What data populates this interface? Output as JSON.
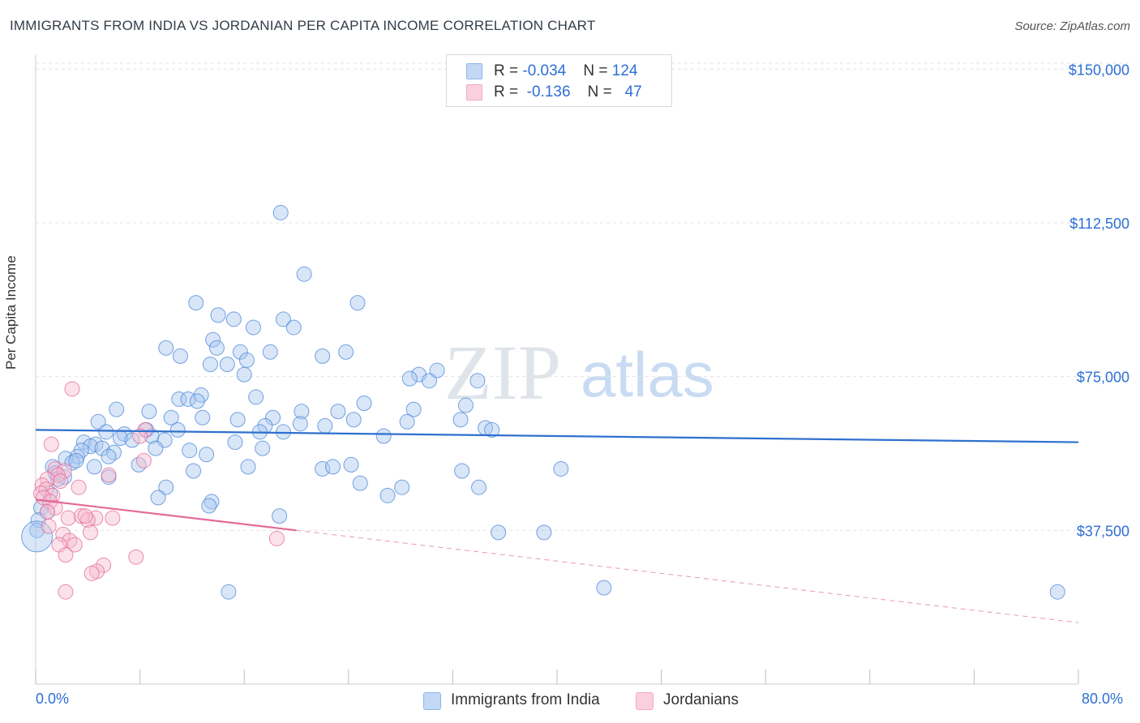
{
  "header": {
    "title": "IMMIGRANTS FROM INDIA VS JORDANIAN PER CAPITA INCOME CORRELATION CHART",
    "source": "Source: ZipAtlas.com"
  },
  "legend_top": {
    "rows": [
      {
        "r_label": "R = ",
        "r_value": "-0.034",
        "n_label": "N = ",
        "n_value": "124",
        "color": "#8db6ec"
      },
      {
        "r_label": "R = ",
        "r_value": "-0.136",
        "n_label": "N = ",
        "n_value": "47",
        "color": "#f4a9c2"
      }
    ]
  },
  "legend_bottom": {
    "items": [
      {
        "label": "Immigrants from India",
        "color": "#8db6ec"
      },
      {
        "label": "Jordanians",
        "color": "#f4a9c2"
      }
    ]
  },
  "watermark": {
    "zip": "ZIP",
    "atlas": "atlas"
  },
  "chart_data": {
    "type": "scatter",
    "title": "IMMIGRANTS FROM INDIA VS JORDANIAN PER CAPITA INCOME CORRELATION CHART",
    "ylabel": "Per Capita Income",
    "xlabel": "",
    "xlim": [
      0,
      80
    ],
    "ylim": [
      0,
      155000
    ],
    "x_tick_labels": [
      "0.0%",
      "80.0%"
    ],
    "y_ticks": [
      37500,
      75000,
      112500,
      150000
    ],
    "y_tick_labels": [
      "$37,500",
      "$75,000",
      "$112,500",
      "$150,000"
    ],
    "colors": {
      "india": "#4a86d8",
      "india_fill": "#a9c8f0",
      "jordan": "#e36a97",
      "jordan_fill": "#f7bdd1",
      "axis_label": "#2d6fd6"
    },
    "series": [
      {
        "name": "Immigrants from India",
        "trend": {
          "x": [
            0,
            80
          ],
          "y": [
            62000,
            59000
          ],
          "dashed_from": null
        },
        "points": [
          [
            18.8,
            115000
          ],
          [
            20.6,
            100000
          ],
          [
            12.3,
            93000
          ],
          [
            24.7,
            93000
          ],
          [
            14.0,
            90000
          ],
          [
            15.2,
            89000
          ],
          [
            19.0,
            89000
          ],
          [
            19.8,
            87000
          ],
          [
            16.7,
            87000
          ],
          [
            13.6,
            84000
          ],
          [
            10.0,
            82000
          ],
          [
            13.9,
            82000
          ],
          [
            23.8,
            81000
          ],
          [
            15.7,
            81000
          ],
          [
            18.0,
            81000
          ],
          [
            22.0,
            80000
          ],
          [
            11.1,
            80000
          ],
          [
            16.2,
            79000
          ],
          [
            13.4,
            78000
          ],
          [
            14.7,
            78000
          ],
          [
            16.0,
            75500
          ],
          [
            29.4,
            75500
          ],
          [
            30.8,
            76500
          ],
          [
            28.7,
            74500
          ],
          [
            30.2,
            74000
          ],
          [
            33.9,
            74000
          ],
          [
            16.9,
            70000
          ],
          [
            11.0,
            69500
          ],
          [
            11.7,
            69500
          ],
          [
            12.7,
            70500
          ],
          [
            12.4,
            69000
          ],
          [
            25.2,
            68500
          ],
          [
            33.0,
            68000
          ],
          [
            6.2,
            67000
          ],
          [
            8.7,
            66500
          ],
          [
            23.2,
            66500
          ],
          [
            29.0,
            67000
          ],
          [
            20.4,
            66500
          ],
          [
            18.2,
            65000
          ],
          [
            10.4,
            65000
          ],
          [
            12.8,
            65000
          ],
          [
            15.5,
            64500
          ],
          [
            24.4,
            64500
          ],
          [
            32.6,
            64500
          ],
          [
            28.5,
            64000
          ],
          [
            20.3,
            63500
          ],
          [
            4.8,
            64000
          ],
          [
            17.6,
            63000
          ],
          [
            22.2,
            63000
          ],
          [
            34.5,
            62500
          ],
          [
            35.0,
            62000
          ],
          [
            5.4,
            61500
          ],
          [
            8.5,
            62000
          ],
          [
            10.9,
            62000
          ],
          [
            17.2,
            61500
          ],
          [
            19.0,
            61500
          ],
          [
            6.8,
            61000
          ],
          [
            8.9,
            60500
          ],
          [
            6.5,
            60000
          ],
          [
            9.9,
            59500
          ],
          [
            3.7,
            59000
          ],
          [
            4.6,
            58500
          ],
          [
            26.7,
            60500
          ],
          [
            15.3,
            59000
          ],
          [
            7.4,
            59500
          ],
          [
            4.2,
            58000
          ],
          [
            5.1,
            57500
          ],
          [
            3.5,
            57000
          ],
          [
            9.2,
            57500
          ],
          [
            11.8,
            57000
          ],
          [
            17.4,
            57500
          ],
          [
            6.0,
            56500
          ],
          [
            13.1,
            56000
          ],
          [
            5.6,
            55500
          ],
          [
            3.2,
            55500
          ],
          [
            2.3,
            55000
          ],
          [
            1.3,
            53000
          ],
          [
            2.8,
            54000
          ],
          [
            3.1,
            54500
          ],
          [
            7.9,
            53500
          ],
          [
            4.5,
            53000
          ],
          [
            22.0,
            52500
          ],
          [
            16.3,
            53000
          ],
          [
            24.2,
            53500
          ],
          [
            22.8,
            53000
          ],
          [
            12.1,
            52000
          ],
          [
            32.7,
            52000
          ],
          [
            40.3,
            52500
          ],
          [
            5.6,
            50500
          ],
          [
            1.5,
            51500
          ],
          [
            2.2,
            50500
          ],
          [
            1.7,
            50000
          ],
          [
            24.9,
            49000
          ],
          [
            28.1,
            48000
          ],
          [
            10.0,
            48000
          ],
          [
            34.0,
            48000
          ],
          [
            27.0,
            46000
          ],
          [
            9.4,
            45500
          ],
          [
            13.5,
            44500
          ],
          [
            1.1,
            46500
          ],
          [
            13.3,
            43500
          ],
          [
            0.4,
            43000
          ],
          [
            0.9,
            42000
          ],
          [
            18.7,
            41000
          ],
          [
            35.5,
            37000
          ],
          [
            39.0,
            37000
          ],
          [
            0.2,
            40000
          ],
          [
            0.1,
            37500
          ],
          [
            14.8,
            22500
          ],
          [
            43.6,
            23500
          ],
          [
            78.4,
            22500
          ]
        ]
      },
      {
        "name": "Jordanians",
        "trend": {
          "x": [
            0,
            20
          ],
          "y": [
            45000,
            37500
          ],
          "dashed_to": [
            80,
            15000
          ]
        },
        "points": [
          [
            2.8,
            72000
          ],
          [
            1.2,
            58500
          ],
          [
            8.4,
            62000
          ],
          [
            8.0,
            60500
          ],
          [
            8.3,
            54500
          ],
          [
            1.5,
            52500
          ],
          [
            2.2,
            52000
          ],
          [
            1.7,
            51000
          ],
          [
            5.6,
            51000
          ],
          [
            0.9,
            50000
          ],
          [
            0.5,
            48500
          ],
          [
            1.9,
            49500
          ],
          [
            3.3,
            48000
          ],
          [
            0.8,
            47500
          ],
          [
            0.4,
            46500
          ],
          [
            1.3,
            46000
          ],
          [
            0.6,
            45500
          ],
          [
            1.1,
            44500
          ],
          [
            1.5,
            43000
          ],
          [
            0.9,
            42000
          ],
          [
            3.5,
            41000
          ],
          [
            4.6,
            40500
          ],
          [
            4.0,
            40000
          ],
          [
            2.5,
            40500
          ],
          [
            5.9,
            40500
          ],
          [
            3.8,
            41000
          ],
          [
            1.0,
            38500
          ],
          [
            4.2,
            37000
          ],
          [
            2.1,
            36500
          ],
          [
            2.6,
            35000
          ],
          [
            1.8,
            34000
          ],
          [
            3.0,
            34000
          ],
          [
            18.5,
            35500
          ],
          [
            2.3,
            31500
          ],
          [
            7.7,
            31000
          ],
          [
            5.2,
            29000
          ],
          [
            4.7,
            27500
          ],
          [
            4.3,
            27000
          ],
          [
            2.3,
            22500
          ]
        ]
      }
    ]
  }
}
